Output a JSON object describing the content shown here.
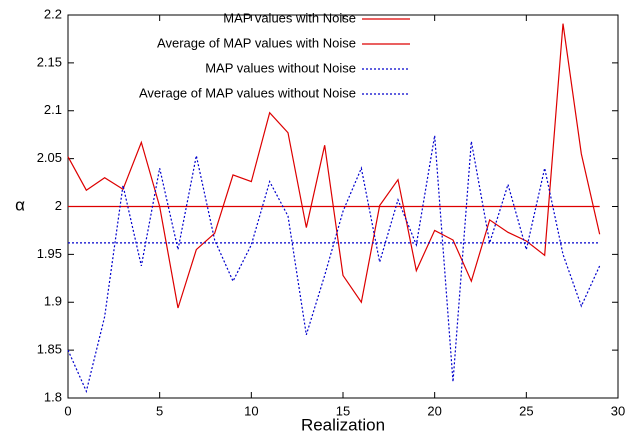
{
  "chart_data": {
    "type": "line",
    "xlabel": "Realization",
    "ylabel": "α",
    "x": [
      0,
      1,
      2,
      3,
      4,
      5,
      6,
      7,
      8,
      9,
      10,
      11,
      12,
      13,
      14,
      15,
      16,
      17,
      18,
      19,
      20,
      21,
      22,
      23,
      24,
      25,
      26,
      27,
      28,
      29
    ],
    "series": [
      {
        "name": "MAP values with Noise",
        "color": "#dd0000",
        "linestyle": "solid",
        "values": [
          2.052,
          2.017,
          2.03,
          2.018,
          2.067,
          2.0,
          1.894,
          1.955,
          1.972,
          2.033,
          2.026,
          2.098,
          2.077,
          1.978,
          2.064,
          1.928,
          1.9,
          2.001,
          2.028,
          1.933,
          1.975,
          1.965,
          1.922,
          1.986,
          1.973,
          1.964,
          1.949,
          2.191,
          2.055,
          1.971
        ]
      },
      {
        "name": "Average of MAP values with Noise",
        "color": "#dd0000",
        "linestyle": "solid",
        "x": [
          0,
          29
        ],
        "values": [
          2.0,
          2.0
        ]
      },
      {
        "name": "MAP values without Noise",
        "color": "#0000cc",
        "linestyle": "dotted",
        "values": [
          1.85,
          1.807,
          1.885,
          2.022,
          1.938,
          2.04,
          1.955,
          2.053,
          1.965,
          1.922,
          1.96,
          2.026,
          1.99,
          1.866,
          1.928,
          1.995,
          2.04,
          1.942,
          2.007,
          1.96,
          2.074,
          1.817,
          2.068,
          1.962,
          2.023,
          1.955,
          2.04,
          1.95,
          1.896,
          1.938
        ]
      },
      {
        "name": "Average of MAP values without Noise",
        "color": "#0000cc",
        "linestyle": "dotted",
        "x": [
          0,
          29
        ],
        "values": [
          1.962,
          1.962
        ]
      }
    ],
    "xlim": [
      0,
      30
    ],
    "xticks": [
      0,
      5,
      10,
      15,
      20,
      25,
      30
    ],
    "ylim": [
      1.8,
      2.2
    ],
    "yticks": [
      1.8,
      1.85,
      1.9,
      1.95,
      2,
      2.05,
      2.1,
      2.15,
      2.2
    ],
    "grid": false,
    "legend": "upper-center"
  }
}
